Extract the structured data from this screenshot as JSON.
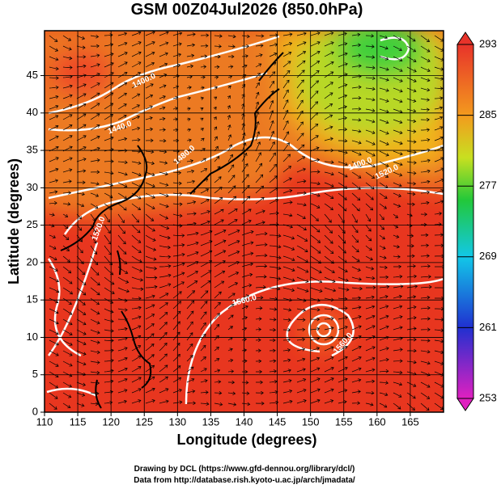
{
  "chart_data": {
    "type": "map",
    "title": "GSM 00Z04Jul2026 (850.0hPa)",
    "x_label": "Longitude (degrees)",
    "y_label": "Latitude (degrees)",
    "xlim": [
      110,
      170
    ],
    "xticks": [
      110,
      115,
      120,
      125,
      130,
      135,
      140,
      145,
      150,
      155,
      160,
      165
    ],
    "ylim": [
      0,
      51
    ],
    "yticks": [
      0,
      5,
      10,
      15,
      20,
      25,
      30,
      35,
      40,
      45
    ],
    "grid": true,
    "colorbar": {
      "lim": [
        253,
        293
      ],
      "ticks": [
        293,
        285,
        277,
        269,
        261,
        253
      ]
    },
    "contour_labels": [
      "1400.0",
      "1440.0",
      "1480.0",
      "1520.0",
      "1560.0",
      "1400.0",
      "1520.0",
      "1560.0"
    ],
    "credits": [
      "Drawing by DCL (https://www.gfd-dennou.org/library/dcl/)",
      "Data from http://database.rish.kyoto-u.ac.jp/arch/jmadata/"
    ]
  }
}
